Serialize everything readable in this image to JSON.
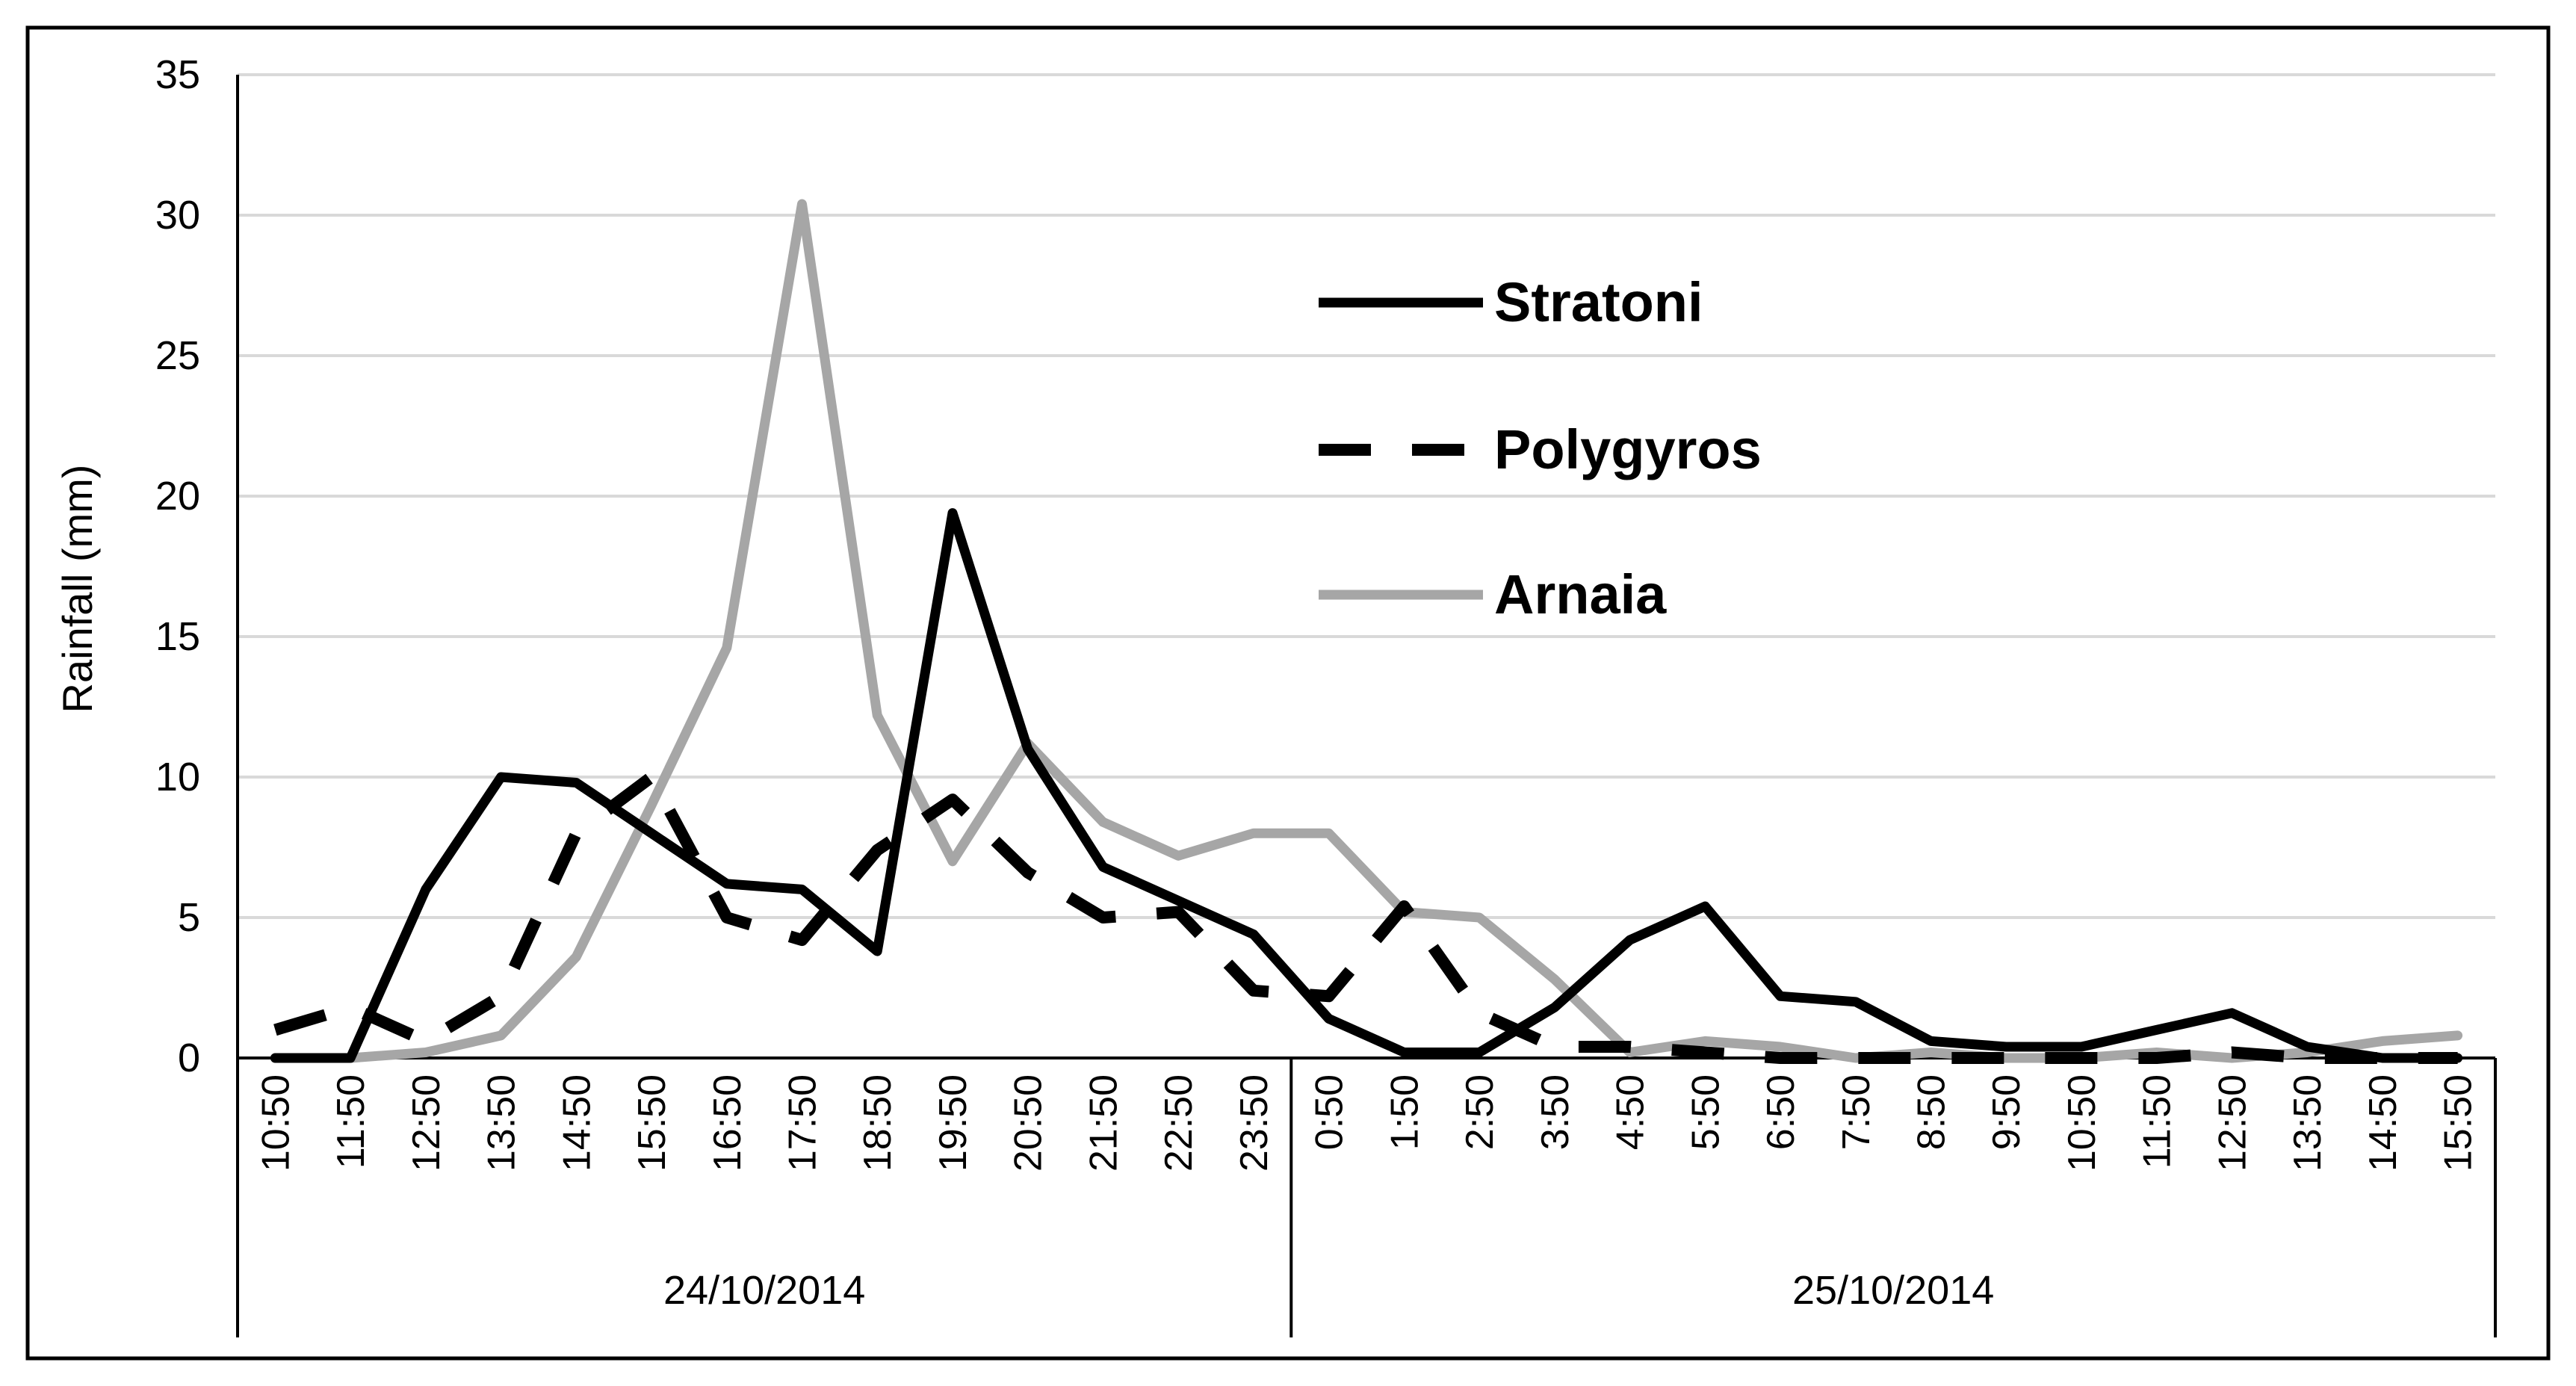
{
  "chart_data": {
    "type": "line",
    "ylabel": "Rainfall (mm)",
    "xlabel": "",
    "title": "",
    "ylim": [
      0,
      35
    ],
    "yticks": [
      "0",
      "5",
      "10",
      "15",
      "20",
      "25",
      "30",
      "35"
    ],
    "grid": "horizontal",
    "legend_position": "right",
    "categories": [
      "10:50",
      "11:50",
      "12:50",
      "13:50",
      "14:50",
      "15:50",
      "16:50",
      "17:50",
      "18:50",
      "19:50",
      "20:50",
      "21:50",
      "22:50",
      "23:50",
      "0:50",
      "1:50",
      "2:50",
      "3:50",
      "4:50",
      "5:50",
      "6:50",
      "7:50",
      "8:50",
      "9:50",
      "10:50",
      "11:50",
      "12:50",
      "13:50",
      "14:50",
      "15:50"
    ],
    "date_groups": [
      {
        "label": "24/10/2014",
        "count": 14
      },
      {
        "label": "25/10/2014",
        "count": 16
      }
    ],
    "series": [
      {
        "name": "Stratoni",
        "style": "solid",
        "color": "#000000",
        "values": [
          0,
          0,
          6.0,
          10.0,
          9.8,
          8.0,
          6.2,
          6.0,
          3.8,
          19.4,
          11.0,
          6.8,
          5.6,
          4.4,
          1.4,
          0.2,
          0.2,
          1.8,
          4.2,
          5.4,
          2.2,
          2.0,
          0.6,
          0.4,
          0.4,
          1.0,
          1.6,
          0.4,
          0,
          0
        ]
      },
      {
        "name": "Polygyros",
        "style": "dashed",
        "color": "#000000",
        "values": [
          1.0,
          1.8,
          0.6,
          2.2,
          8.0,
          10.0,
          5.0,
          4.2,
          7.4,
          9.2,
          6.6,
          5.0,
          5.2,
          2.4,
          2.2,
          5.4,
          1.6,
          0.4,
          0.4,
          0.2,
          0,
          0,
          0,
          0,
          0,
          0,
          0.2,
          0,
          0,
          0
        ]
      },
      {
        "name": "Arnaia",
        "style": "solid",
        "color": "#a6a6a6",
        "values": [
          0,
          0,
          0.2,
          0.8,
          3.6,
          9.0,
          14.6,
          30.4,
          12.2,
          7.0,
          11.2,
          8.4,
          7.2,
          8.0,
          8.0,
          5.2,
          5.0,
          2.8,
          0.2,
          0.6,
          0.4,
          0,
          0.2,
          0,
          0,
          0.2,
          0,
          0.2,
          0.6,
          0.8
        ]
      }
    ]
  }
}
